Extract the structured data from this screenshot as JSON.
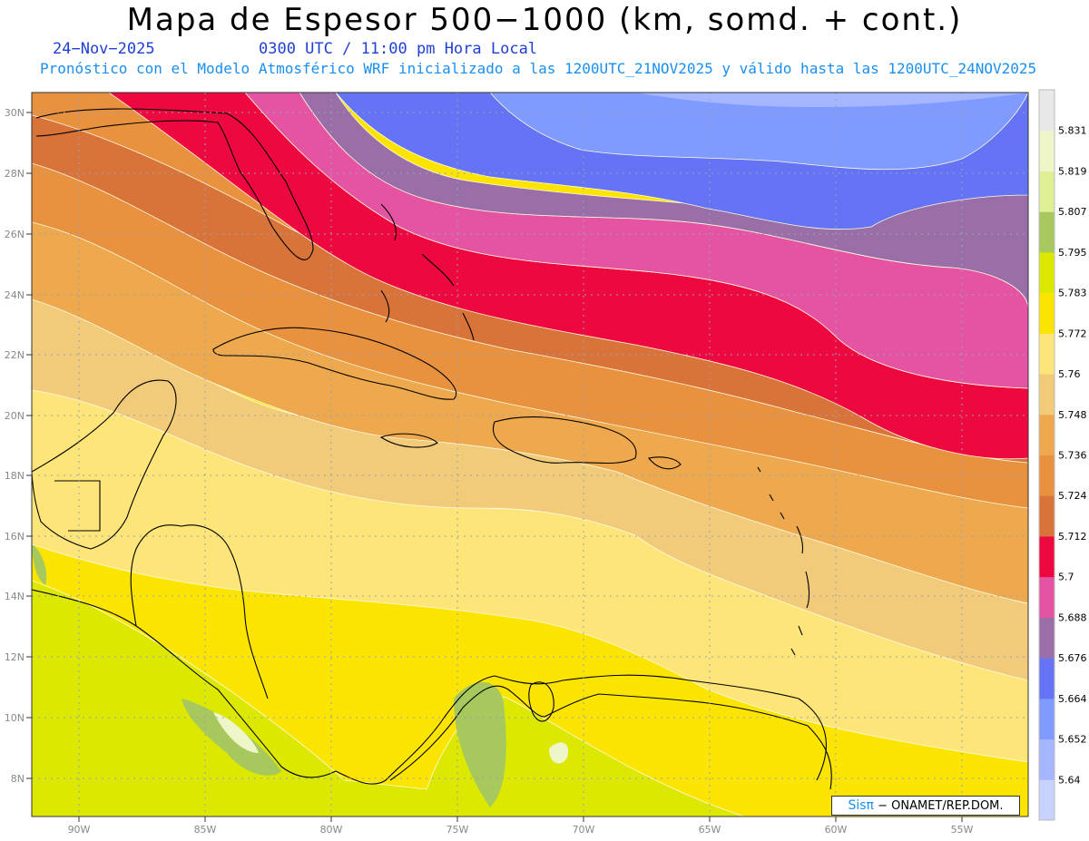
{
  "title": "Mapa de Espesor 500−1000 (km, somd. + cont.)",
  "date_label": "24−Nov−2025",
  "time_label": "0300 UTC / 11:00 pm Hora Local",
  "subtitle": "Pronóstico con el Modelo Atmosférico WRF inicializado a las 1200UTC_21NOV2025 y válido hasta las  1200UTC_24NOV2025",
  "credit": {
    "logo": "Sisπ",
    "text": "− ONAMET/REP.DOM."
  },
  "map": {
    "lat_labels": [
      "8N",
      "10N",
      "12N",
      "14N",
      "16N",
      "18N",
      "20N",
      "22N",
      "24N",
      "26N",
      "28N",
      "30N"
    ],
    "lon_labels": [
      "90W",
      "85W",
      "80W",
      "75W",
      "70W",
      "65W",
      "60W",
      "55W"
    ],
    "colorbar": {
      "labels": [
        "5.64",
        "5.652",
        "5.664",
        "5.676",
        "5.688",
        "5.7",
        "5.712",
        "5.724",
        "5.736",
        "5.748",
        "5.76",
        "5.772",
        "5.783",
        "5.795",
        "5.807",
        "5.819",
        "5.831"
      ],
      "colors": [
        "#c7d2ff",
        "#a5b6ff",
        "#7f9bff",
        "#6474f4",
        "#9a6fa8",
        "#e553a3",
        "#ee0840",
        "#d8733a",
        "#e8913f",
        "#eea84e",
        "#f2cb7a",
        "#fde57a",
        "#fbe500",
        "#dce800",
        "#a6c85c",
        "#dfef95",
        "#eef5c9",
        "#e8e8e8"
      ]
    }
  }
}
